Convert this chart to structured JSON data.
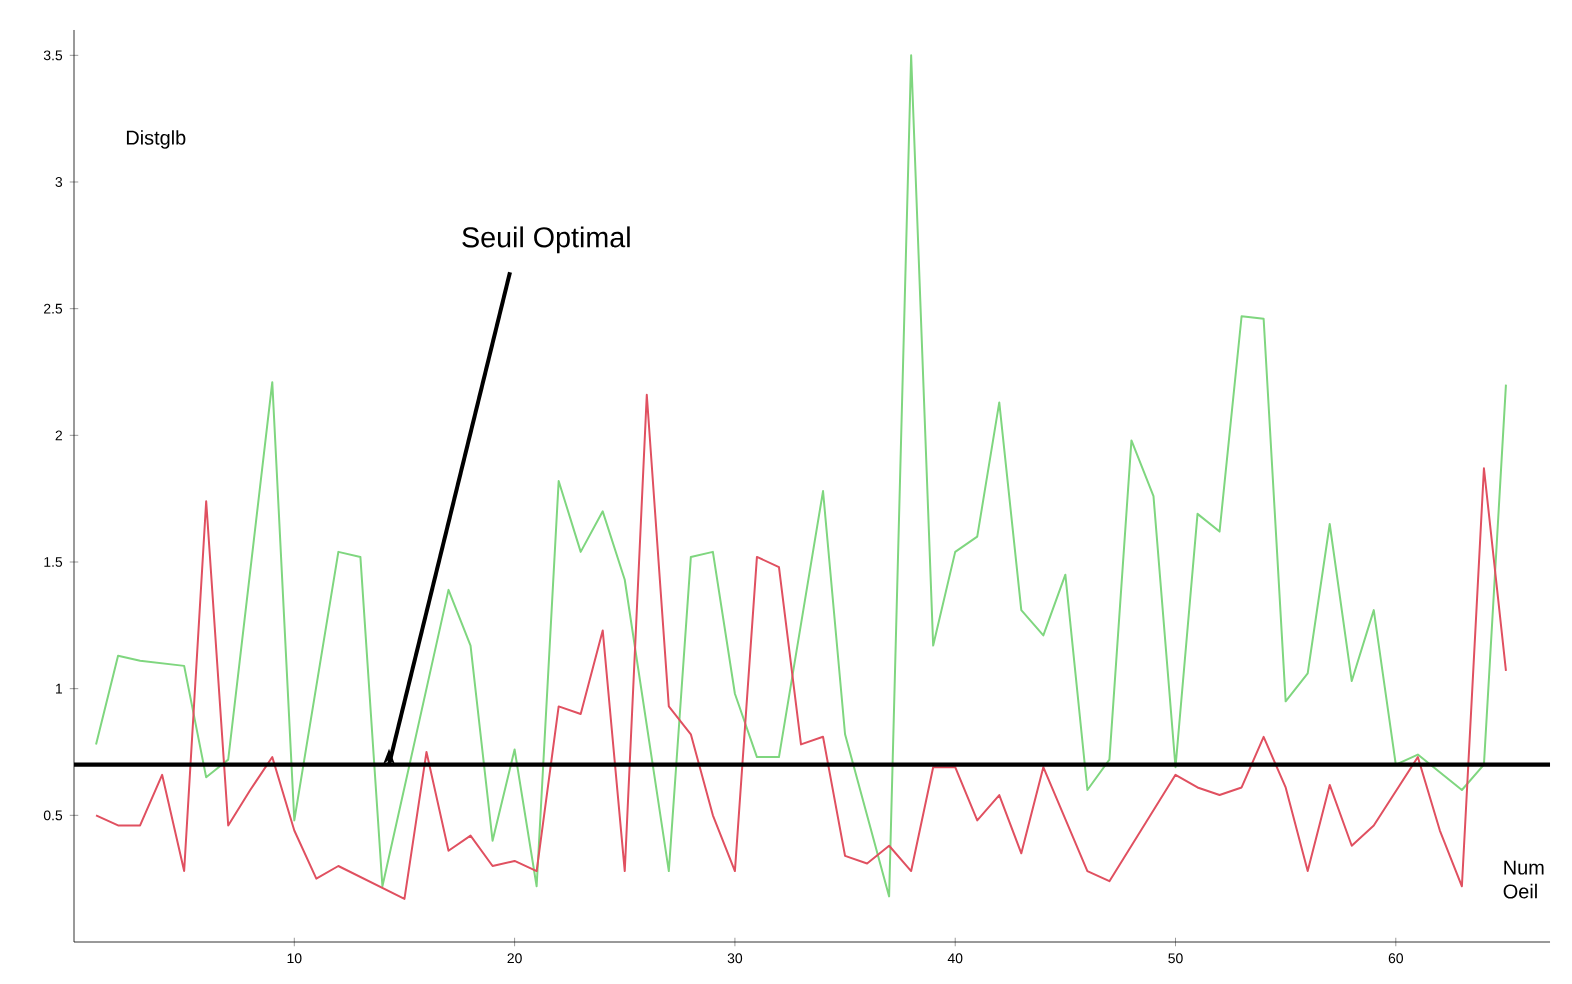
{
  "chart_data": {
    "type": "line",
    "xlabel": "Num Oeil",
    "ylabel": "Distglb",
    "xlim": [
      0,
      67
    ],
    "ylim": [
      0,
      3.6
    ],
    "xticks": [
      10,
      20,
      30,
      40,
      50,
      60
    ],
    "yticks": [
      0.5,
      1,
      1.5,
      2,
      2.5,
      3,
      3.5
    ],
    "grid": false,
    "marker": "none",
    "line_style": "solid",
    "series": [
      {
        "color": "#7fd67f",
        "x": [
          1,
          2,
          3,
          5,
          6,
          7,
          9,
          10,
          12,
          13,
          14,
          17,
          18,
          19,
          20,
          21,
          22,
          23,
          24,
          25,
          27,
          28,
          29,
          30,
          31,
          32,
          34,
          35,
          37,
          38,
          39,
          40,
          41,
          42,
          43,
          44,
          45,
          46,
          47,
          48,
          49,
          50,
          51,
          52,
          53,
          54,
          55,
          56,
          57,
          58,
          59,
          60,
          61,
          63,
          64,
          65
        ],
        "values": [
          0.78,
          1.13,
          1.11,
          1.09,
          0.65,
          0.72,
          2.21,
          0.48,
          1.54,
          1.52,
          0.22,
          1.39,
          1.17,
          0.4,
          0.76,
          0.22,
          1.82,
          1.54,
          1.7,
          1.43,
          0.28,
          1.52,
          1.54,
          0.98,
          0.73,
          0.73,
          1.78,
          0.82,
          0.18,
          3.5,
          1.17,
          1.54,
          1.6,
          2.13,
          1.31,
          1.21,
          1.45,
          0.6,
          0.72,
          1.98,
          1.76,
          0.69,
          1.69,
          1.62,
          2.47,
          2.46,
          0.95,
          1.06,
          1.65,
          1.03,
          1.31,
          0.7,
          0.74,
          0.6,
          0.7,
          2.2
        ]
      },
      {
        "color": "#e05060",
        "x": [
          1,
          2,
          3,
          4,
          5,
          6,
          7,
          8,
          9,
          10,
          11,
          12,
          15,
          16,
          17,
          18,
          19,
          20,
          21,
          22,
          23,
          24,
          25,
          26,
          27,
          28,
          29,
          30,
          31,
          32,
          33,
          34,
          35,
          36,
          37,
          38,
          39,
          40,
          41,
          42,
          43,
          44,
          46,
          47,
          50,
          51,
          52,
          53,
          54,
          55,
          56,
          57,
          58,
          59,
          61,
          62,
          63,
          64,
          65
        ],
        "values": [
          0.5,
          0.46,
          0.46,
          0.66,
          0.28,
          1.74,
          0.46,
          0.6,
          0.73,
          0.44,
          0.25,
          0.3,
          0.17,
          0.75,
          0.36,
          0.42,
          0.3,
          0.32,
          0.28,
          0.93,
          0.9,
          1.23,
          0.28,
          2.16,
          0.93,
          0.82,
          0.5,
          0.28,
          1.52,
          1.48,
          0.78,
          0.81,
          0.34,
          0.31,
          0.38,
          0.28,
          0.69,
          0.69,
          0.48,
          0.58,
          0.35,
          0.69,
          0.28,
          0.24,
          0.66,
          0.61,
          0.58,
          0.61,
          0.81,
          0.61,
          0.28,
          0.62,
          0.38,
          0.46,
          0.73,
          0.44,
          0.22,
          1.87,
          1.07
        ]
      }
    ],
    "ref_lines": [
      {
        "axis": "y",
        "value": 0.7,
        "label": "Seuil Optimal",
        "color": "#000000"
      }
    ]
  }
}
